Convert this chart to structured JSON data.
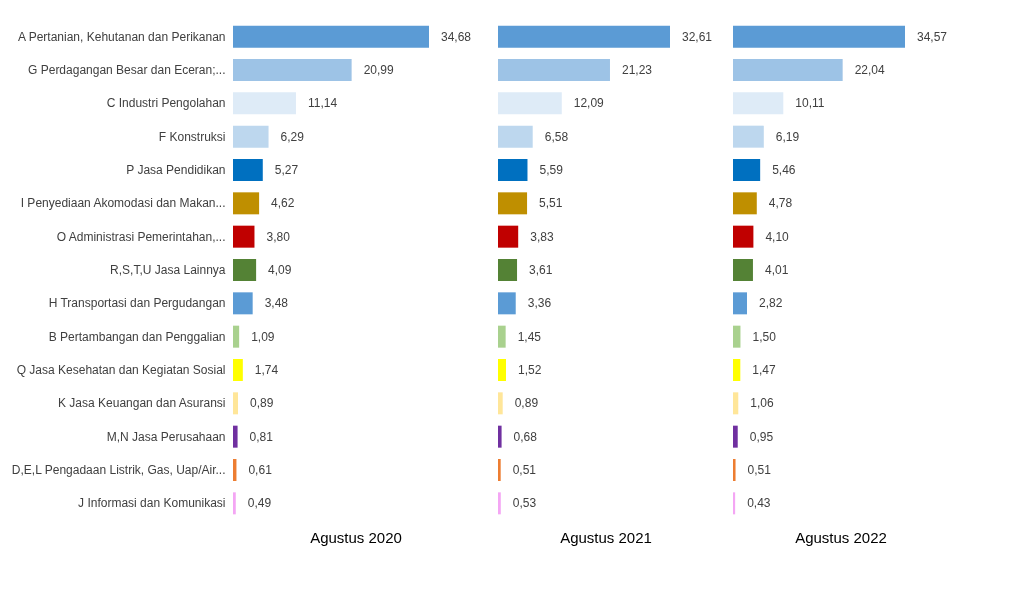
{
  "chart_data": [
    {
      "type": "bar",
      "orientation": "horizontal",
      "xlabel": "Agustus 2020",
      "data_labels": false,
      "categories": [
        "A Pertanian, Kehutanan dan Perikanan",
        "G Perdagangan Besar dan Eceran;...",
        "C Industri Pengolahan",
        "F Konstruksi",
        "P Jasa Pendidikan",
        "I Penyediaan Akomodasi dan Makan...",
        "O Administrasi Pemerintahan,...",
        "R,S,T,U Jasa Lainnya",
        "H Transportasi dan Pergudangan",
        "B Pertambangan dan Penggalian",
        "Q Jasa Kesehatan dan Kegiatan Sosial",
        "K Jasa Keuangan dan Asuransi",
        "M,N Jasa Perusahaan",
        "D,E,L Pengadaan Listrik, Gas, Uap/Air...",
        "J Informasi dan Komunikasi"
      ],
      "values": [
        34.68,
        20.99,
        11.14,
        6.29,
        5.27,
        4.62,
        3.8,
        4.09,
        3.48,
        1.09,
        1.74,
        0.89,
        0.81,
        0.61,
        0.49
      ],
      "value_labels": [
        "34,68",
        "20,99",
        "11,14",
        "6,29",
        "5,27",
        "4,62",
        "3,80",
        "4,09",
        "3,48",
        "1,09",
        "1,74",
        "0,89",
        "0,81",
        "0,61",
        "0,49"
      ],
      "colors": [
        "#5b9bd5",
        "#9dc3e6",
        "#deebf7",
        "#bdd7ee",
        "#0070c0",
        "#bf8f00",
        "#c00000",
        "#548235",
        "#5b9bd5",
        "#a9d18e",
        "#ffff00",
        "#ffe699",
        "#7030a0",
        "#ed7d31",
        "#f4a6f4"
      ]
    },
    {
      "type": "bar",
      "orientation": "horizontal",
      "xlabel": "Agustus 2021",
      "categories": [
        null,
        null,
        null,
        null,
        null,
        null,
        null,
        null,
        null,
        null,
        null,
        null,
        null,
        null,
        null
      ],
      "values": [
        32.61,
        21.23,
        12.09,
        6.58,
        5.59,
        5.51,
        3.83,
        3.61,
        3.36,
        1.45,
        1.52,
        0.89,
        0.68,
        0.51,
        0.53
      ],
      "value_labels": [
        "32,61",
        "21,23",
        "12,09",
        "6,58",
        "5,59",
        "5,51",
        "3,83",
        "3,61",
        "3,36",
        "1,45",
        "1,52",
        "0,89",
        "0,68",
        "0,51",
        "0,53"
      ],
      "colors": [
        "#5b9bd5",
        "#9dc3e6",
        "#deebf7",
        "#bdd7ee",
        "#0070c0",
        "#bf8f00",
        "#c00000",
        "#548235",
        "#5b9bd5",
        "#a9d18e",
        "#ffff00",
        "#ffe699",
        "#7030a0",
        "#ed7d31",
        "#f4a6f4"
      ]
    },
    {
      "type": "bar",
      "orientation": "horizontal",
      "xlabel": "Agustus 2022",
      "categories": [
        null,
        null,
        null,
        null,
        null,
        null,
        null,
        null,
        null,
        null,
        null,
        null,
        null,
        null,
        null
      ],
      "values": [
        34.57,
        22.04,
        10.11,
        6.19,
        5.46,
        4.78,
        4.1,
        4.01,
        2.82,
        1.5,
        1.47,
        1.06,
        0.95,
        0.51,
        0.43
      ],
      "value_labels": [
        "34,57",
        "22,04",
        "10,11",
        "6,19",
        "5,46",
        "4,78",
        "4,10",
        "4,01",
        "2,82",
        "1,50",
        "1,47",
        "1,06",
        "0,95",
        "0,51",
        "0,43"
      ],
      "colors": [
        "#5b9bd5",
        "#9dc3e6",
        "#deebf7",
        "#bdd7ee",
        "#0070c0",
        "#bf8f00",
        "#c00000",
        "#548235",
        "#5b9bd5",
        "#a9d18e",
        "#ffff00",
        "#ffe699",
        "#7030a0",
        "#ed7d31",
        "#f4a6f4"
      ]
    }
  ]
}
